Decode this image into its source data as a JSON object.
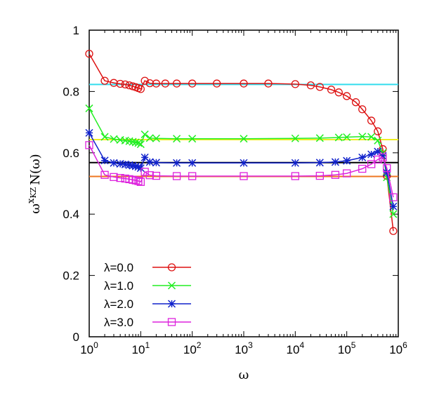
{
  "chart_data": {
    "type": "line",
    "xscale": "log",
    "xlim": [
      1,
      1000000
    ],
    "ylim": [
      0,
      1
    ],
    "xlabel": "ω",
    "ylabel_main": "ω",
    "ylabel_sup": "x",
    "ylabel_sub": "KZ",
    "ylabel_rest": "N(ω)",
    "x_tick_base": "10",
    "x_ticks": [
      {
        "value": 1,
        "exp": "0"
      },
      {
        "value": 10,
        "exp": "1"
      },
      {
        "value": 100,
        "exp": "2"
      },
      {
        "value": 1000,
        "exp": "3"
      },
      {
        "value": 10000,
        "exp": "4"
      },
      {
        "value": 100000,
        "exp": "5"
      },
      {
        "value": 1000000,
        "exp": "6"
      }
    ],
    "y_ticks": [
      {
        "value": 0,
        "label": "0"
      },
      {
        "value": 0.2,
        "label": "0.2"
      },
      {
        "value": 0.4,
        "label": "0.4"
      },
      {
        "value": 0.6,
        "label": "0.6"
      },
      {
        "value": 0.8,
        "label": "0.8"
      },
      {
        "value": 1,
        "label": "1"
      }
    ],
    "legend_position": "bottom-left",
    "reference_lines": [
      {
        "y": 0.823,
        "color": "#33ddee"
      },
      {
        "y": 0.643,
        "color": "#eeee22"
      },
      {
        "y": 0.568,
        "color": "#000000"
      },
      {
        "y": 0.523,
        "color": "#ee7722"
      }
    ],
    "series": [
      {
        "name": "λ=0.0",
        "color": "#dd1111",
        "marker": "circle",
        "x": [
          1,
          2,
          3,
          4,
          5,
          6,
          7,
          8,
          9,
          10,
          12,
          15,
          20,
          30,
          50,
          100,
          300,
          1000,
          3000,
          10000,
          20000,
          30000,
          50000,
          70000,
          100000,
          150000,
          200000,
          300000,
          400000,
          500000,
          600000,
          800000
        ],
        "y": [
          0.923,
          0.835,
          0.828,
          0.825,
          0.823,
          0.82,
          0.817,
          0.814,
          0.811,
          0.808,
          0.835,
          0.827,
          0.826,
          0.826,
          0.826,
          0.826,
          0.826,
          0.826,
          0.826,
          0.824,
          0.82,
          0.815,
          0.806,
          0.797,
          0.785,
          0.765,
          0.742,
          0.705,
          0.67,
          0.612,
          0.525,
          0.345
        ]
      },
      {
        "name": "λ=1.0",
        "color": "#22ee22",
        "marker": "cross",
        "x": [
          1,
          2,
          3,
          4,
          5,
          6,
          7,
          8,
          9,
          10,
          12,
          15,
          20,
          50,
          100,
          1000,
          10000,
          30000,
          70000,
          100000,
          200000,
          300000,
          400000,
          500000,
          600000,
          800000
        ],
        "y": [
          0.745,
          0.652,
          0.645,
          0.642,
          0.64,
          0.638,
          0.636,
          0.634,
          0.632,
          0.628,
          0.66,
          0.648,
          0.647,
          0.646,
          0.646,
          0.646,
          0.647,
          0.648,
          0.65,
          0.651,
          0.653,
          0.652,
          0.64,
          0.6,
          0.52,
          0.4
        ]
      },
      {
        "name": "λ=2.0",
        "color": "#1122cc",
        "marker": "star",
        "x": [
          1,
          2,
          3,
          4,
          5,
          6,
          7,
          8,
          9,
          10,
          12,
          15,
          20,
          50,
          100,
          1000,
          10000,
          30000,
          60000,
          100000,
          200000,
          300000,
          400000,
          500000,
          600000,
          800000
        ],
        "y": [
          0.665,
          0.575,
          0.567,
          0.564,
          0.562,
          0.56,
          0.558,
          0.556,
          0.554,
          0.55,
          0.585,
          0.57,
          0.568,
          0.567,
          0.567,
          0.567,
          0.567,
          0.568,
          0.57,
          0.574,
          0.585,
          0.595,
          0.604,
          0.59,
          0.535,
          0.425
        ]
      },
      {
        "name": "λ=3.0",
        "color": "#dd22dd",
        "marker": "square",
        "x": [
          1,
          2,
          3,
          4,
          5,
          6,
          7,
          8,
          9,
          10,
          12,
          15,
          20,
          50,
          100,
          1000,
          10000,
          30000,
          60000,
          100000,
          200000,
          300000,
          400000,
          500000,
          600000,
          800000
        ],
        "y": [
          0.625,
          0.528,
          0.521,
          0.518,
          0.516,
          0.514,
          0.512,
          0.51,
          0.508,
          0.505,
          0.538,
          0.527,
          0.525,
          0.524,
          0.524,
          0.524,
          0.524,
          0.525,
          0.528,
          0.533,
          0.548,
          0.563,
          0.578,
          0.585,
          0.55,
          0.455
        ]
      }
    ]
  }
}
